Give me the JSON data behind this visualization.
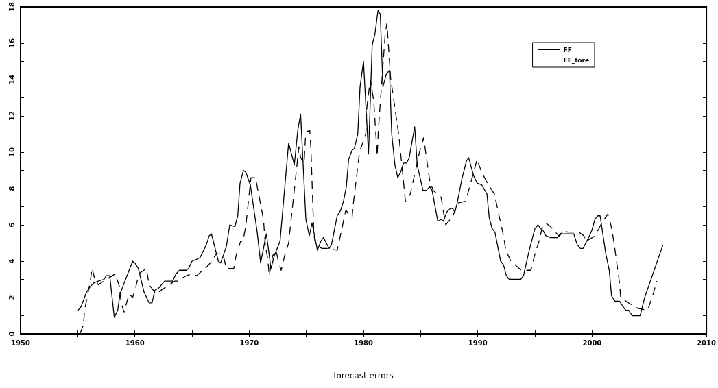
{
  "chart_data": {
    "type": "line",
    "xlabel": "forecast errors",
    "xlim": [
      1950,
      2010
    ],
    "xticks": [
      1950,
      {
        "value": 1955,
        "label": null
      },
      1960,
      {
        "value": 1965,
        "label": null
      },
      1970,
      {
        "value": 1975,
        "label": null
      },
      1980,
      {
        "value": 1985,
        "label": null
      },
      1990,
      {
        "value": 1995,
        "label": null
      },
      2000,
      {
        "value": 2005,
        "label": null
      },
      2010
    ],
    "ylim": [
      0,
      18
    ],
    "yticks": [
      0,
      {
        "value": 1,
        "label": null
      },
      2,
      {
        "value": 3,
        "label": null
      },
      4,
      {
        "value": 5,
        "label": null
      },
      6,
      {
        "value": 7,
        "label": null
      },
      8,
      {
        "value": 9,
        "label": null
      },
      10,
      {
        "value": 11,
        "label": null
      },
      12,
      {
        "value": 13,
        "label": null
      },
      14,
      {
        "value": 15,
        "label": null
      },
      16,
      {
        "value": 17,
        "label": null
      },
      18
    ],
    "grid": false,
    "legend": "top right",
    "marker": "none",
    "series": [
      {
        "name": "FF",
        "color": "#000000",
        "line_style": "solid",
        "x": [
          1955.04,
          1955.3,
          1955.77,
          1956.1,
          1956.4,
          1956.8,
          1957.3,
          1957.5,
          1957.8,
          1958.2,
          1958.5,
          1958.7,
          1959.8,
          1960.0,
          1960.3,
          1960.8,
          1961.25,
          1961.5,
          1961.75,
          1962.05,
          1962.6,
          1962.9,
          1963.3,
          1963.6,
          1963.9,
          1964.5,
          1964.7,
          1965.0,
          1965.4,
          1965.7,
          1966.25,
          1966.5,
          1966.7,
          1967.3,
          1967.5,
          1968.0,
          1968.3,
          1968.75,
          1969.0,
          1969.2,
          1969.5,
          1969.7,
          1970.1,
          1970.7,
          1971.0,
          1971.5,
          1971.7,
          1971.9,
          1972.2,
          1972.7,
          1973.45,
          1973.95,
          1974.25,
          1974.5,
          1974.96,
          1975.26,
          1975.5,
          1975.97,
          1976.27,
          1976.5,
          1977.0,
          1977.2,
          1977.7,
          1978.0,
          1978.25,
          1978.5,
          1978.7,
          1979.0,
          1979.2,
          1979.5,
          1979.7,
          1980.0,
          1980.44,
          1980.76,
          1981.0,
          1981.27,
          1981.47,
          1981.7,
          1982.0,
          1982.27,
          1982.47,
          1982.75,
          1983.0,
          1983.25,
          1983.5,
          1983.78,
          1984.0,
          1984.48,
          1984.7,
          1985.2,
          1985.5,
          1985.8,
          1986.0,
          1986.5,
          1986.8,
          1987.0,
          1987.27,
          1987.6,
          1987.8,
          1988.0,
          1988.2,
          1988.6,
          1989.0,
          1989.2,
          1989.64,
          1989.94,
          1990.34,
          1990.8,
          1991.0,
          1991.25,
          1991.5,
          1992.0,
          1992.25,
          1992.5,
          1992.75,
          1993.25,
          1993.5,
          1993.75,
          1994.0,
          1994.5,
          1995.0,
          1995.26,
          1995.5,
          1995.7,
          1995.96,
          1996.37,
          1996.97,
          1997.3,
          1998.4,
          1998.7,
          1998.97,
          1999.2,
          1999.7,
          1999.98,
          2000.24,
          2000.5,
          2000.7,
          2001.2,
          2001.5,
          2001.7,
          2002.0,
          2002.4,
          2002.7,
          2002.95,
          2003.2,
          2003.5,
          2004.2,
          2004.6,
          2006.2
        ],
        "values": [
          1.3,
          1.5,
          2.3,
          2.6,
          2.8,
          2.9,
          3.0,
          3.2,
          3.2,
          0.9,
          1.3,
          2.2,
          4.0,
          3.9,
          3.6,
          2.3,
          1.7,
          1.7,
          2.4,
          2.5,
          2.9,
          2.9,
          2.9,
          3.3,
          3.5,
          3.5,
          3.6,
          4.0,
          4.1,
          4.2,
          4.9,
          5.4,
          5.5,
          4.0,
          3.9,
          4.8,
          6.0,
          5.9,
          6.5,
          8.3,
          9.0,
          8.9,
          8.2,
          5.6,
          3.9,
          5.5,
          4.6,
          3.6,
          4.3,
          5.1,
          10.5,
          9.3,
          11.2,
          12.1,
          6.3,
          5.4,
          6.1,
          4.6,
          5.1,
          5.3,
          4.7,
          4.9,
          6.5,
          6.8,
          7.3,
          8.1,
          9.6,
          10.1,
          10.2,
          11.0,
          13.6,
          15.0,
          9.9,
          15.9,
          16.5,
          17.8,
          17.6,
          13.6,
          14.3,
          14.5,
          11.0,
          9.3,
          8.6,
          8.9,
          9.4,
          9.4,
          9.7,
          11.4,
          9.3,
          7.9,
          7.9,
          8.1,
          7.9,
          6.2,
          6.3,
          6.2,
          6.7,
          6.9,
          6.9,
          6.7,
          7.2,
          8.5,
          9.5,
          9.7,
          8.7,
          8.3,
          8.2,
          7.7,
          6.4,
          5.8,
          5.6,
          4.0,
          3.8,
          3.2,
          3.0,
          3.0,
          3.0,
          3.0,
          3.2,
          4.6,
          5.8,
          6.0,
          5.8,
          5.7,
          5.4,
          5.3,
          5.3,
          5.5,
          5.5,
          4.9,
          4.7,
          4.7,
          5.3,
          5.7,
          6.3,
          6.5,
          6.5,
          4.4,
          3.5,
          2.1,
          1.8,
          1.8,
          1.5,
          1.3,
          1.3,
          1.0,
          1.0,
          2.0,
          4.9
        ]
      },
      {
        "name": "FF_fore",
        "color": "#000000",
        "line_style": "dashed",
        "x": [
          1955.2,
          1955.5,
          1955.6,
          1955.85,
          1956.1,
          1956.25,
          1956.5,
          1956.8,
          1957.5,
          1958.28,
          1958.65,
          1958.8,
          1959.05,
          1959.5,
          1959.8,
          1960.05,
          1960.35,
          1961.0,
          1961.25,
          1961.85,
          1962.75,
          1963.5,
          1963.7,
          1964.5,
          1965.0,
          1965.4,
          1966.3,
          1966.75,
          1967.1,
          1967.7,
          1968.0,
          1968.65,
          1968.85,
          1969.25,
          1969.45,
          1969.7,
          1970.15,
          1970.55,
          1971.25,
          1971.4,
          1971.65,
          1971.75,
          1972.05,
          1972.35,
          1972.55,
          1972.8,
          1973.1,
          1973.45,
          1974.35,
          1974.5,
          1974.8,
          1974.95,
          1975.3,
          1975.4,
          1975.65,
          1975.75,
          1976.0,
          1976.4,
          1976.85,
          1977.7,
          1978.45,
          1979.0,
          1979.1,
          1979.65,
          1980.2,
          1980.3,
          1980.6,
          1980.9,
          1981.2,
          1981.3,
          1981.9,
          1982.05,
          1982.3,
          1982.37,
          1983.1,
          1983.67,
          1984.1,
          1984.9,
          1985.26,
          1985.8,
          1986.1,
          1986.8,
          1987.0,
          1987.2,
          1987.83,
          1988.23,
          1988.94,
          1989.94,
          1990.34,
          1990.84,
          1991.45,
          1992.25,
          1992.45,
          1992.9,
          1993.8,
          1994.65,
          1994.96,
          1995.36,
          1995.66,
          1995.96,
          1996.37,
          1997.07,
          1997.57,
          1997.83,
          1998.83,
          1999.28,
          1999.48,
          2000.28,
          2000.84,
          2001.38,
          2001.68,
          2001.9,
          2002.4,
          2002.5,
          2003.2,
          2004.0,
          2004.86,
          2005.3,
          2005.66
        ],
        "values": [
          0.0,
          0.5,
          1.3,
          2.1,
          2.9,
          3.6,
          3.0,
          2.7,
          3.0,
          3.3,
          2.6,
          1.7,
          1.2,
          2.2,
          2.0,
          2.5,
          3.3,
          3.6,
          2.7,
          2.2,
          2.6,
          2.9,
          2.9,
          3.2,
          3.3,
          3.2,
          3.7,
          4.0,
          4.4,
          4.4,
          3.6,
          3.6,
          4.3,
          5.1,
          5.1,
          5.9,
          8.6,
          8.6,
          6.3,
          5.0,
          4.0,
          3.2,
          4.3,
          4.6,
          4.0,
          3.5,
          4.3,
          5.0,
          10.3,
          9.7,
          9.4,
          11.1,
          11.2,
          10.2,
          5.6,
          5.1,
          4.8,
          4.7,
          4.7,
          4.6,
          6.8,
          6.4,
          7.1,
          10.0,
          11.0,
          12.5,
          14.0,
          12.8,
          9.8,
          11.2,
          16.5,
          17.1,
          14.8,
          14.1,
          10.9,
          7.3,
          7.7,
          10.0,
          10.8,
          8.4,
          7.9,
          7.5,
          6.7,
          6.0,
          6.5,
          7.2,
          7.3,
          9.6,
          8.9,
          8.3,
          7.7,
          5.4,
          4.6,
          4.0,
          3.5,
          3.5,
          4.3,
          5.1,
          5.9,
          6.1,
          5.9,
          5.4,
          5.7,
          5.6,
          5.6,
          5.4,
          5.1,
          5.4,
          6.1,
          6.6,
          5.9,
          5.1,
          2.8,
          2.0,
          1.7,
          1.4,
          1.3,
          2.1,
          2.9
        ]
      }
    ]
  }
}
